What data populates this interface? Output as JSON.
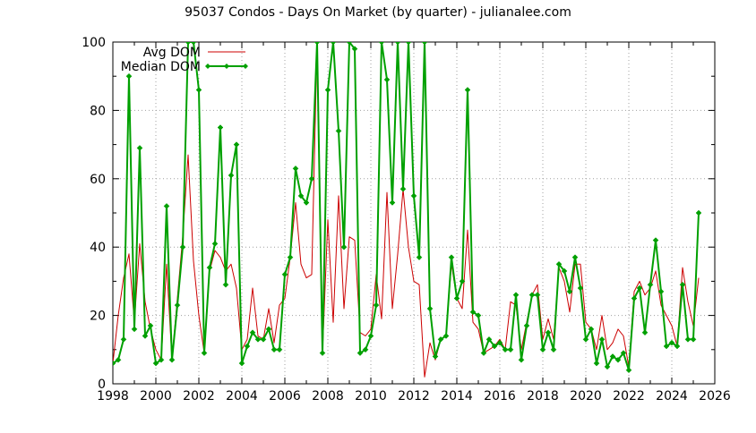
{
  "chart_data": {
    "type": "line",
    "title": "95037 Condos - Days On Market (by quarter) - julianalee.com",
    "xlabel": "",
    "ylabel": "",
    "xlim": [
      1998,
      2026
    ],
    "ylim": [
      0,
      100
    ],
    "x_ticks": [
      "1998",
      "2000",
      "2002",
      "2004",
      "2006",
      "2008",
      "2010",
      "2012",
      "2014",
      "2016",
      "2018",
      "2020",
      "2022",
      "2024",
      "2026"
    ],
    "y_ticks": [
      "0",
      "20",
      "40",
      "60",
      "80",
      "100"
    ],
    "grid": true,
    "legend_position": "top-left",
    "series": [
      {
        "name": "Avg DOM",
        "color": "#cc0000",
        "marker": false,
        "points": [
          [
            1998.0,
            6
          ],
          [
            1998.25,
            20
          ],
          [
            1998.5,
            31
          ],
          [
            1998.75,
            38
          ],
          [
            1999.0,
            18
          ],
          [
            1999.25,
            41
          ],
          [
            1999.5,
            24
          ],
          [
            1999.75,
            16
          ],
          [
            2000.0,
            10
          ],
          [
            2000.25,
            7
          ],
          [
            2000.5,
            35
          ],
          [
            2000.75,
            7
          ],
          [
            2001.0,
            25
          ],
          [
            2001.25,
            43
          ],
          [
            2001.5,
            67
          ],
          [
            2001.75,
            36
          ],
          [
            2002.0,
            20
          ],
          [
            2002.25,
            9
          ],
          [
            2002.5,
            33
          ],
          [
            2002.75,
            39
          ],
          [
            2003.0,
            37
          ],
          [
            2003.25,
            33
          ],
          [
            2003.5,
            35
          ],
          [
            2003.75,
            28
          ],
          [
            2004.0,
            10
          ],
          [
            2004.25,
            13
          ],
          [
            2004.5,
            28
          ],
          [
            2004.75,
            14
          ],
          [
            2005.0,
            13
          ],
          [
            2005.25,
            22
          ],
          [
            2005.5,
            12
          ],
          [
            2005.75,
            23
          ],
          [
            2006.0,
            25
          ],
          [
            2006.25,
            37
          ],
          [
            2006.5,
            53
          ],
          [
            2006.75,
            35
          ],
          [
            2007.0,
            31
          ],
          [
            2007.25,
            32
          ],
          [
            2007.5,
            100
          ],
          [
            2007.75,
            9
          ],
          [
            2008.0,
            48
          ],
          [
            2008.25,
            18
          ],
          [
            2008.5,
            55
          ],
          [
            2008.75,
            22
          ],
          [
            2009.0,
            43
          ],
          [
            2009.25,
            42
          ],
          [
            2009.5,
            15
          ],
          [
            2009.75,
            14
          ],
          [
            2010.0,
            16
          ],
          [
            2010.25,
            32
          ],
          [
            2010.5,
            19
          ],
          [
            2010.75,
            56
          ],
          [
            2011.0,
            22
          ],
          [
            2011.25,
            38
          ],
          [
            2011.5,
            57
          ],
          [
            2011.75,
            40
          ],
          [
            2012.0,
            30
          ],
          [
            2012.25,
            29
          ],
          [
            2012.5,
            2
          ],
          [
            2012.75,
            12
          ],
          [
            2013.0,
            7
          ],
          [
            2013.25,
            13
          ],
          [
            2013.5,
            14
          ],
          [
            2013.75,
            35
          ],
          [
            2014.0,
            25
          ],
          [
            2014.25,
            22
          ],
          [
            2014.5,
            45
          ],
          [
            2014.75,
            18
          ],
          [
            2015.0,
            16
          ],
          [
            2015.25,
            9
          ],
          [
            2015.5,
            10
          ],
          [
            2015.75,
            11
          ],
          [
            2016.0,
            13
          ],
          [
            2016.25,
            10
          ],
          [
            2016.5,
            24
          ],
          [
            2016.75,
            23
          ],
          [
            2017.0,
            10
          ],
          [
            2017.25,
            18
          ],
          [
            2017.5,
            26
          ],
          [
            2017.75,
            29
          ],
          [
            2018.0,
            13
          ],
          [
            2018.25,
            19
          ],
          [
            2018.5,
            13
          ],
          [
            2018.75,
            34
          ],
          [
            2019.0,
            30
          ],
          [
            2019.25,
            21
          ],
          [
            2019.5,
            35
          ],
          [
            2019.75,
            35
          ],
          [
            2020.0,
            18
          ],
          [
            2020.25,
            16
          ],
          [
            2020.5,
            10
          ],
          [
            2020.75,
            20
          ],
          [
            2021.0,
            10
          ],
          [
            2021.25,
            12
          ],
          [
            2021.5,
            16
          ],
          [
            2021.75,
            14
          ],
          [
            2022.0,
            5
          ],
          [
            2022.25,
            27
          ],
          [
            2022.5,
            30
          ],
          [
            2022.75,
            26
          ],
          [
            2023.0,
            28
          ],
          [
            2023.25,
            33
          ],
          [
            2023.5,
            23
          ],
          [
            2023.75,
            20
          ],
          [
            2024.0,
            17
          ],
          [
            2024.25,
            11
          ],
          [
            2024.5,
            34
          ],
          [
            2024.75,
            24
          ],
          [
            2025.0,
            17
          ],
          [
            2025.25,
            31
          ]
        ]
      },
      {
        "name": "Median DOM",
        "color": "#00a000",
        "marker": true,
        "points": [
          [
            1998.0,
            6
          ],
          [
            1998.25,
            7
          ],
          [
            1998.5,
            13
          ],
          [
            1998.75,
            90
          ],
          [
            1999.0,
            16
          ],
          [
            1999.25,
            69
          ],
          [
            1999.5,
            14
          ],
          [
            1999.75,
            17
          ],
          [
            2000.0,
            6
          ],
          [
            2000.25,
            7
          ],
          [
            2000.5,
            52
          ],
          [
            2000.75,
            7
          ],
          [
            2001.0,
            23
          ],
          [
            2001.25,
            40
          ],
          [
            2001.5,
            100
          ],
          [
            2001.75,
            100
          ],
          [
            2002.0,
            86
          ],
          [
            2002.25,
            9
          ],
          [
            2002.5,
            34
          ],
          [
            2002.75,
            41
          ],
          [
            2003.0,
            75
          ],
          [
            2003.25,
            29
          ],
          [
            2003.5,
            61
          ],
          [
            2003.75,
            70
          ],
          [
            2004.0,
            6
          ],
          [
            2004.25,
            11
          ],
          [
            2004.5,
            15
          ],
          [
            2004.75,
            13
          ],
          [
            2005.0,
            13
          ],
          [
            2005.25,
            16
          ],
          [
            2005.5,
            10
          ],
          [
            2005.75,
            10
          ],
          [
            2006.0,
            32
          ],
          [
            2006.25,
            37
          ],
          [
            2006.5,
            63
          ],
          [
            2006.75,
            55
          ],
          [
            2007.0,
            53
          ],
          [
            2007.25,
            60
          ],
          [
            2007.5,
            100
          ],
          [
            2007.75,
            9
          ],
          [
            2008.0,
            86
          ],
          [
            2008.25,
            100
          ],
          [
            2008.5,
            74
          ],
          [
            2008.75,
            40
          ],
          [
            2009.0,
            100
          ],
          [
            2009.25,
            98
          ],
          [
            2009.5,
            9
          ],
          [
            2009.75,
            10
          ],
          [
            2010.0,
            14
          ],
          [
            2010.25,
            23
          ],
          [
            2010.5,
            100
          ],
          [
            2010.75,
            89
          ],
          [
            2011.0,
            53
          ],
          [
            2011.25,
            100
          ],
          [
            2011.5,
            57
          ],
          [
            2011.75,
            100
          ],
          [
            2012.0,
            55
          ],
          [
            2012.25,
            37
          ],
          [
            2012.5,
            100
          ],
          [
            2012.75,
            22
          ],
          [
            2013.0,
            8
          ],
          [
            2013.25,
            13
          ],
          [
            2013.5,
            14
          ],
          [
            2013.75,
            37
          ],
          [
            2014.0,
            25
          ],
          [
            2014.25,
            30
          ],
          [
            2014.5,
            86
          ],
          [
            2014.75,
            21
          ],
          [
            2015.0,
            20
          ],
          [
            2015.25,
            9
          ],
          [
            2015.5,
            13
          ],
          [
            2015.75,
            11
          ],
          [
            2016.0,
            12
          ],
          [
            2016.25,
            10
          ],
          [
            2016.5,
            10
          ],
          [
            2016.75,
            26
          ],
          [
            2017.0,
            7
          ],
          [
            2017.25,
            17
          ],
          [
            2017.5,
            26
          ],
          [
            2017.75,
            26
          ],
          [
            2018.0,
            10
          ],
          [
            2018.25,
            15
          ],
          [
            2018.5,
            10
          ],
          [
            2018.75,
            35
          ],
          [
            2019.0,
            33
          ],
          [
            2019.25,
            27
          ],
          [
            2019.5,
            37
          ],
          [
            2019.75,
            28
          ],
          [
            2020.0,
            13
          ],
          [
            2020.25,
            16
          ],
          [
            2020.5,
            6
          ],
          [
            2020.75,
            13
          ],
          [
            2021.0,
            5
          ],
          [
            2021.25,
            8
          ],
          [
            2021.5,
            7
          ],
          [
            2021.75,
            9
          ],
          [
            2022.0,
            4
          ],
          [
            2022.25,
            25
          ],
          [
            2022.5,
            28
          ],
          [
            2022.75,
            15
          ],
          [
            2023.0,
            29
          ],
          [
            2023.25,
            42
          ],
          [
            2023.5,
            27
          ],
          [
            2023.75,
            11
          ],
          [
            2024.0,
            12
          ],
          [
            2024.25,
            11
          ],
          [
            2024.5,
            29
          ],
          [
            2024.75,
            13
          ],
          [
            2025.0,
            13
          ],
          [
            2025.25,
            50
          ]
        ]
      }
    ]
  }
}
